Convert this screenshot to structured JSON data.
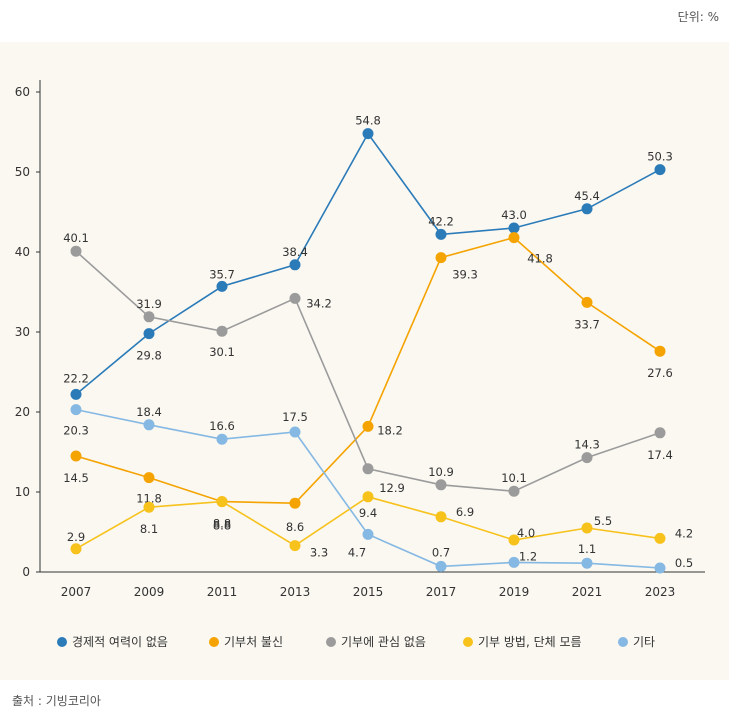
{
  "unit_label": "단위: %",
  "source_label": "출처 : 기빙코리아",
  "chart_data": {
    "type": "line",
    "title": "",
    "xlabel": "",
    "ylabel": "",
    "x": [
      "2007",
      "2009",
      "2011",
      "2013",
      "2015",
      "2017",
      "2019",
      "2021",
      "2023"
    ],
    "yticks": [
      "0",
      "10",
      "20",
      "30",
      "40",
      "50",
      "60"
    ],
    "ylim": [
      0,
      60
    ],
    "grid": false,
    "legend_position": "bottom",
    "series": [
      {
        "name": "경제적 여력이 없음",
        "color": "#2b7bb9",
        "values": [
          22.2,
          29.8,
          35.7,
          38.4,
          54.8,
          42.2,
          43.0,
          45.4,
          50.3
        ],
        "labels": [
          "22.2",
          "29.8",
          "35.7",
          "38.4",
          "54.8",
          "42.2",
          "43.0",
          "45.4",
          "50.3"
        ]
      },
      {
        "name": "기부처 불신",
        "color": "#f5a300",
        "values": [
          14.5,
          11.8,
          8.8,
          8.6,
          18.2,
          39.3,
          41.8,
          33.7,
          27.6
        ],
        "labels": [
          "14.5",
          "11.8",
          "8.8",
          "8.6",
          "18.2",
          "39.3",
          "41.8",
          "33.7",
          "27.6"
        ]
      },
      {
        "name": "기부에 관심 없음",
        "color": "#9b9b9b",
        "values": [
          40.1,
          31.9,
          30.1,
          34.2,
          12.9,
          10.9,
          10.1,
          14.3,
          17.4
        ],
        "labels": [
          "40.1",
          "31.9",
          "30.1",
          "34.2",
          "12.9",
          "10.9",
          "10.1",
          "14.3",
          "17.4"
        ]
      },
      {
        "name": "기부 방법, 단체 모름",
        "color": "#f7c21c",
        "values": [
          2.9,
          8.1,
          8.8,
          3.3,
          9.4,
          6.9,
          4.0,
          5.5,
          4.2
        ],
        "labels": [
          "2.9",
          "8.1",
          "8.8",
          "3.3",
          "9.4",
          "6.9",
          "4.0",
          "5.5",
          "4.2"
        ]
      },
      {
        "name": "기타",
        "color": "#85b8e3",
        "values": [
          20.3,
          18.4,
          16.6,
          17.5,
          4.7,
          0.7,
          1.2,
          1.1,
          0.5
        ],
        "labels": [
          "20.3",
          "18.4",
          "16.6",
          "17.5",
          "4.7",
          "0.7",
          "1.2",
          "1.1",
          "0.5"
        ]
      }
    ]
  }
}
